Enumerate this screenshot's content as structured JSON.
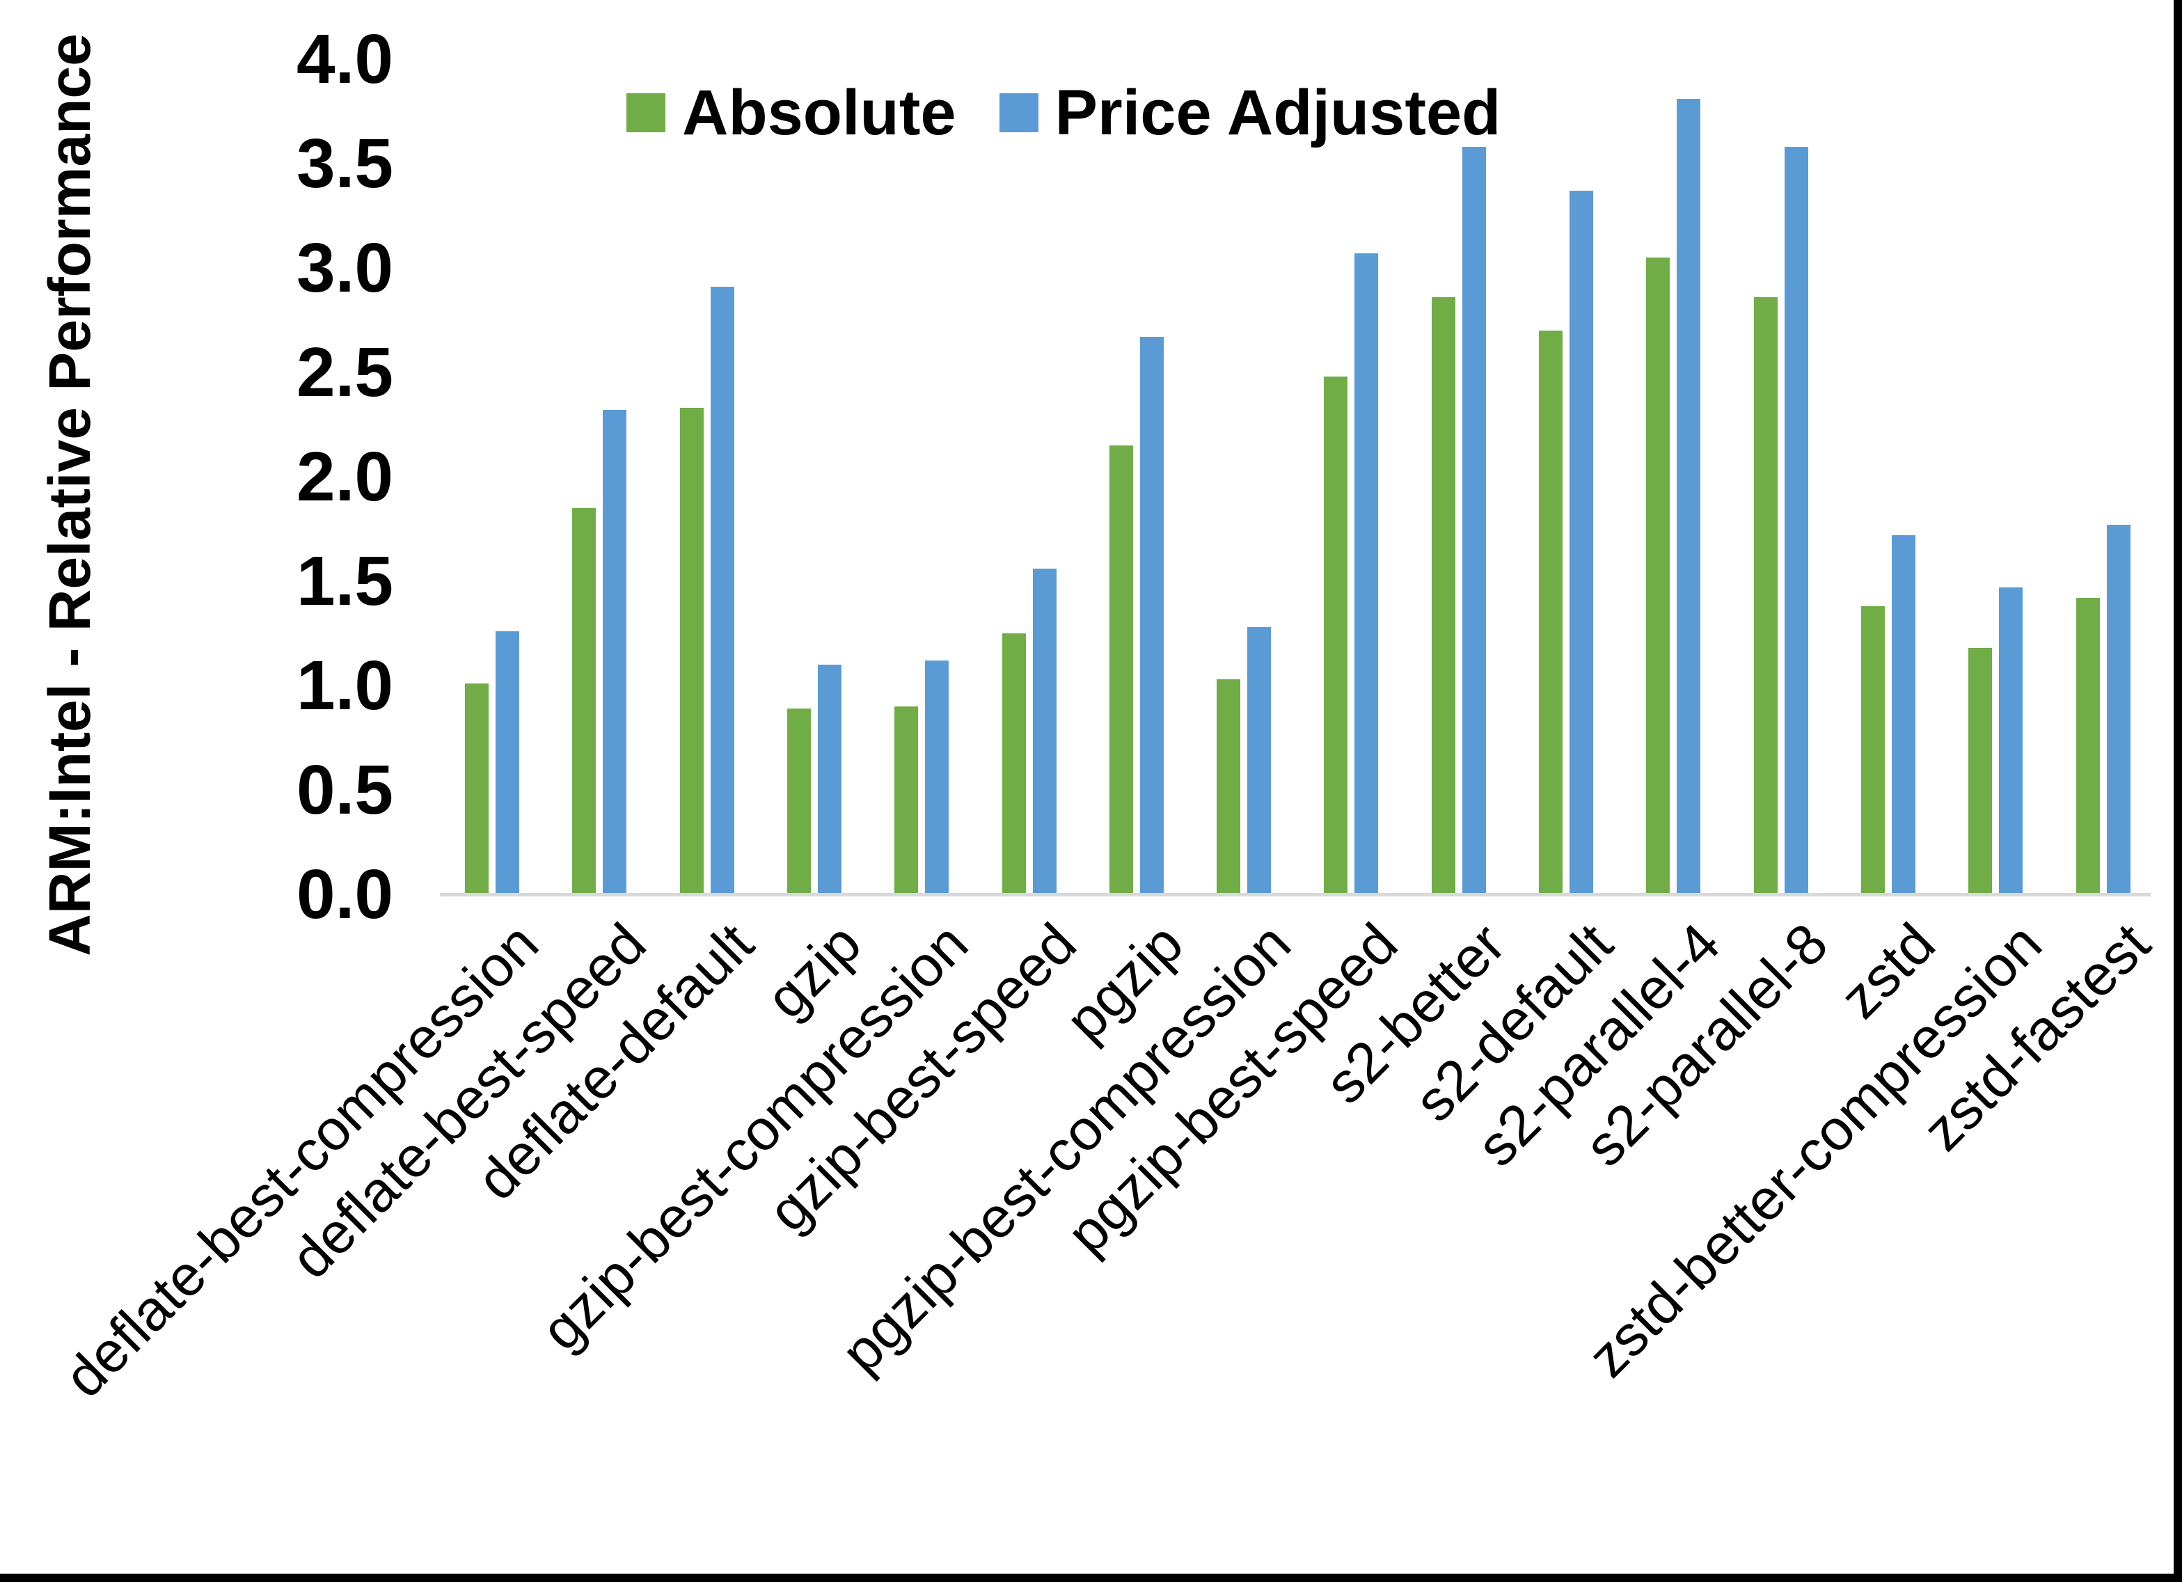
{
  "chart_data": {
    "type": "bar",
    "title": "",
    "xlabel": "",
    "ylabel": "ARM:Intel - Relative Performance",
    "ylim": [
      0.0,
      4.0
    ],
    "ytick_step": 0.5,
    "ytick_labels": [
      "0.0",
      "0.5",
      "1.0",
      "1.5",
      "2.0",
      "2.5",
      "3.0",
      "3.5",
      "4.0"
    ],
    "grid": false,
    "legend_position": "top-center",
    "axis_line_color": "#d9d9d9",
    "categories": [
      "deflate-best-compression",
      "deflate-best-speed",
      "deflate-default",
      "gzip",
      "gzip-best-compression",
      "gzip-best-speed",
      "pgzip",
      "pgzip-best-compression",
      "pgzip-best-speed",
      "s2-better",
      "s2-default",
      "s2-parallel-4",
      "s2-parallel-8",
      "zstd",
      "zstd-better-compression",
      "zstd-fastest"
    ],
    "series": [
      {
        "name": "Absolute",
        "color": "#70AD47",
        "values": [
          1.01,
          1.85,
          2.33,
          0.89,
          0.9,
          1.25,
          2.15,
          1.03,
          2.48,
          2.86,
          2.7,
          3.05,
          2.86,
          1.38,
          1.18,
          1.42
        ]
      },
      {
        "name": "Price Adjusted",
        "color": "#5B9BD5",
        "values": [
          1.26,
          2.32,
          2.91,
          1.1,
          1.12,
          1.56,
          2.67,
          1.28,
          3.07,
          3.58,
          3.37,
          3.81,
          3.58,
          1.72,
          1.47,
          1.77
        ]
      }
    ]
  }
}
